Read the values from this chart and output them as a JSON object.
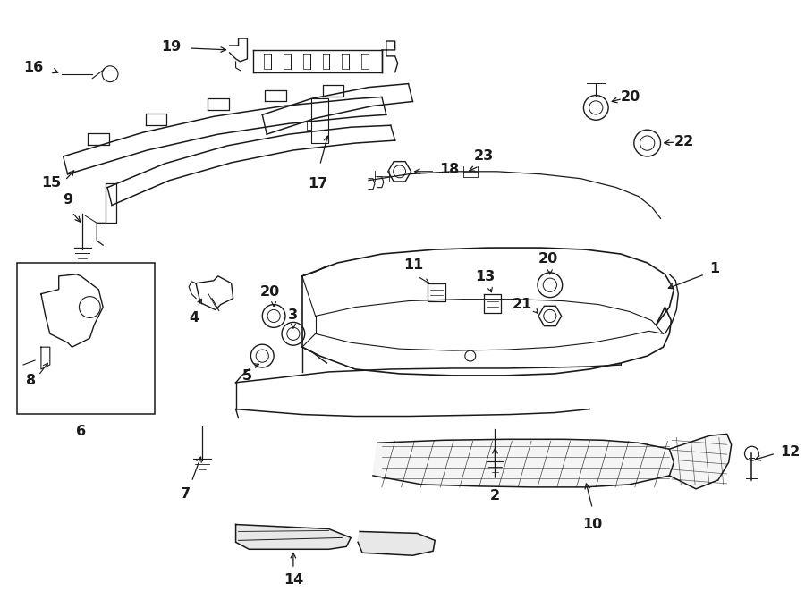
{
  "bg_color": "#ffffff",
  "line_color": "#1a1a1a",
  "lw": 1.0
}
